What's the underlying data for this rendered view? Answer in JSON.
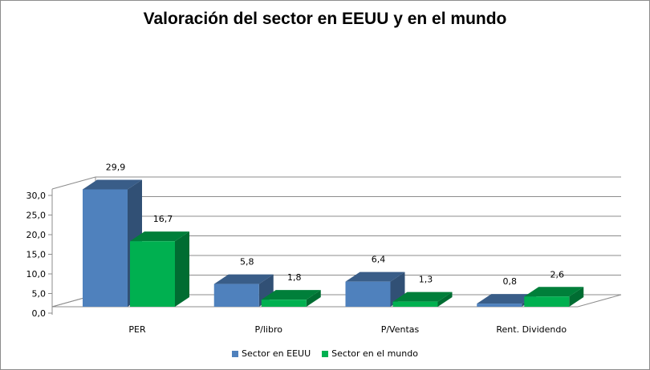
{
  "chart_data": {
    "type": "bar",
    "title": "Valoración del sector en EEUU y en el mundo",
    "categories": [
      "PER",
      "P/libro",
      "P/Ventas",
      "Rent. Dividendo"
    ],
    "series": [
      {
        "name": "Sector en EEUU",
        "values": [
          29.9,
          5.8,
          6.4,
          0.8
        ],
        "labels": [
          "29,9",
          "5,8",
          "6,4",
          "0,8"
        ],
        "color": "#4f81bd"
      },
      {
        "name": "Sector en el mundo",
        "values": [
          16.7,
          1.8,
          1.3,
          2.6
        ],
        "labels": [
          "16,7",
          "1,8",
          "1,3",
          "2,6"
        ],
        "color": "#00b050"
      }
    ],
    "y_ticks": [
      0,
      5,
      10,
      15,
      20,
      25,
      30
    ],
    "y_tick_labels": [
      "0,0",
      "5,0",
      "10,0",
      "15,0",
      "20,0",
      "25,0",
      "30,0"
    ],
    "ylim": [
      0,
      30
    ],
    "grid": true,
    "legend_position": "bottom",
    "style": "3d-clustered-column"
  }
}
